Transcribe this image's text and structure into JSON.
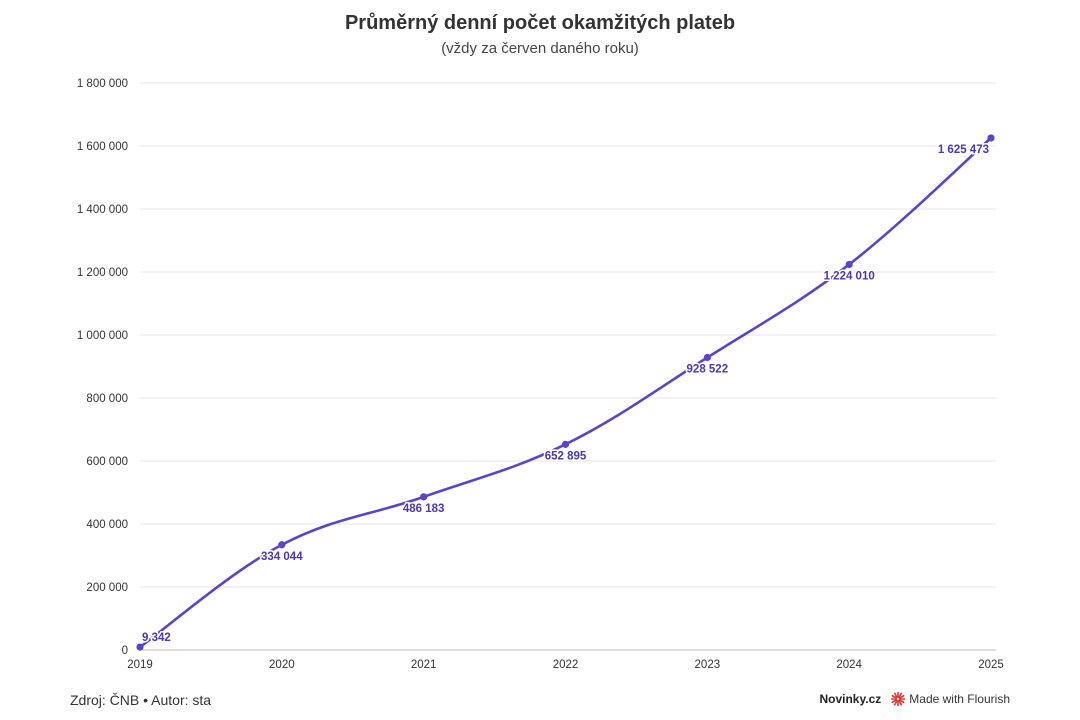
{
  "header": {
    "title": "Průměrný denní počet okamžitých plateb",
    "subtitle": "(vždy za červen daného roku)"
  },
  "footer": {
    "source": "Zdroj: ČNB • Autor: sta",
    "brand": "Novinky.cz",
    "made_with": "Made with Flourish"
  },
  "colors": {
    "line": "#5b43cf",
    "label": "#4a36c0",
    "grid": "#e6e6e6",
    "axis": "#333333",
    "flourish_icon": "#e8322b"
  },
  "chart_data": {
    "type": "line",
    "x": [
      "2019",
      "2020",
      "2021",
      "2022",
      "2023",
      "2024",
      "2025"
    ],
    "series": [
      {
        "values": [
          9342,
          334044,
          486183,
          652895,
          928522,
          1224010,
          1625473
        ],
        "labels": [
          "9 342",
          "334 044",
          "486 183",
          "652 895",
          "928 522",
          "1 224 010",
          "1 625 473"
        ]
      }
    ],
    "y_ticks": [
      0,
      200000,
      400000,
      600000,
      800000,
      1000000,
      1200000,
      1400000,
      1600000,
      1800000
    ],
    "y_tick_labels": [
      "0",
      "200 000",
      "400 000",
      "600 000",
      "800 000",
      "1 000 000",
      "1 200 000",
      "1 400 000",
      "1 600 000",
      "1 800 000"
    ],
    "ylim": [
      0,
      1800000
    ],
    "grid": true,
    "legend": "none",
    "curve": "smooth"
  }
}
